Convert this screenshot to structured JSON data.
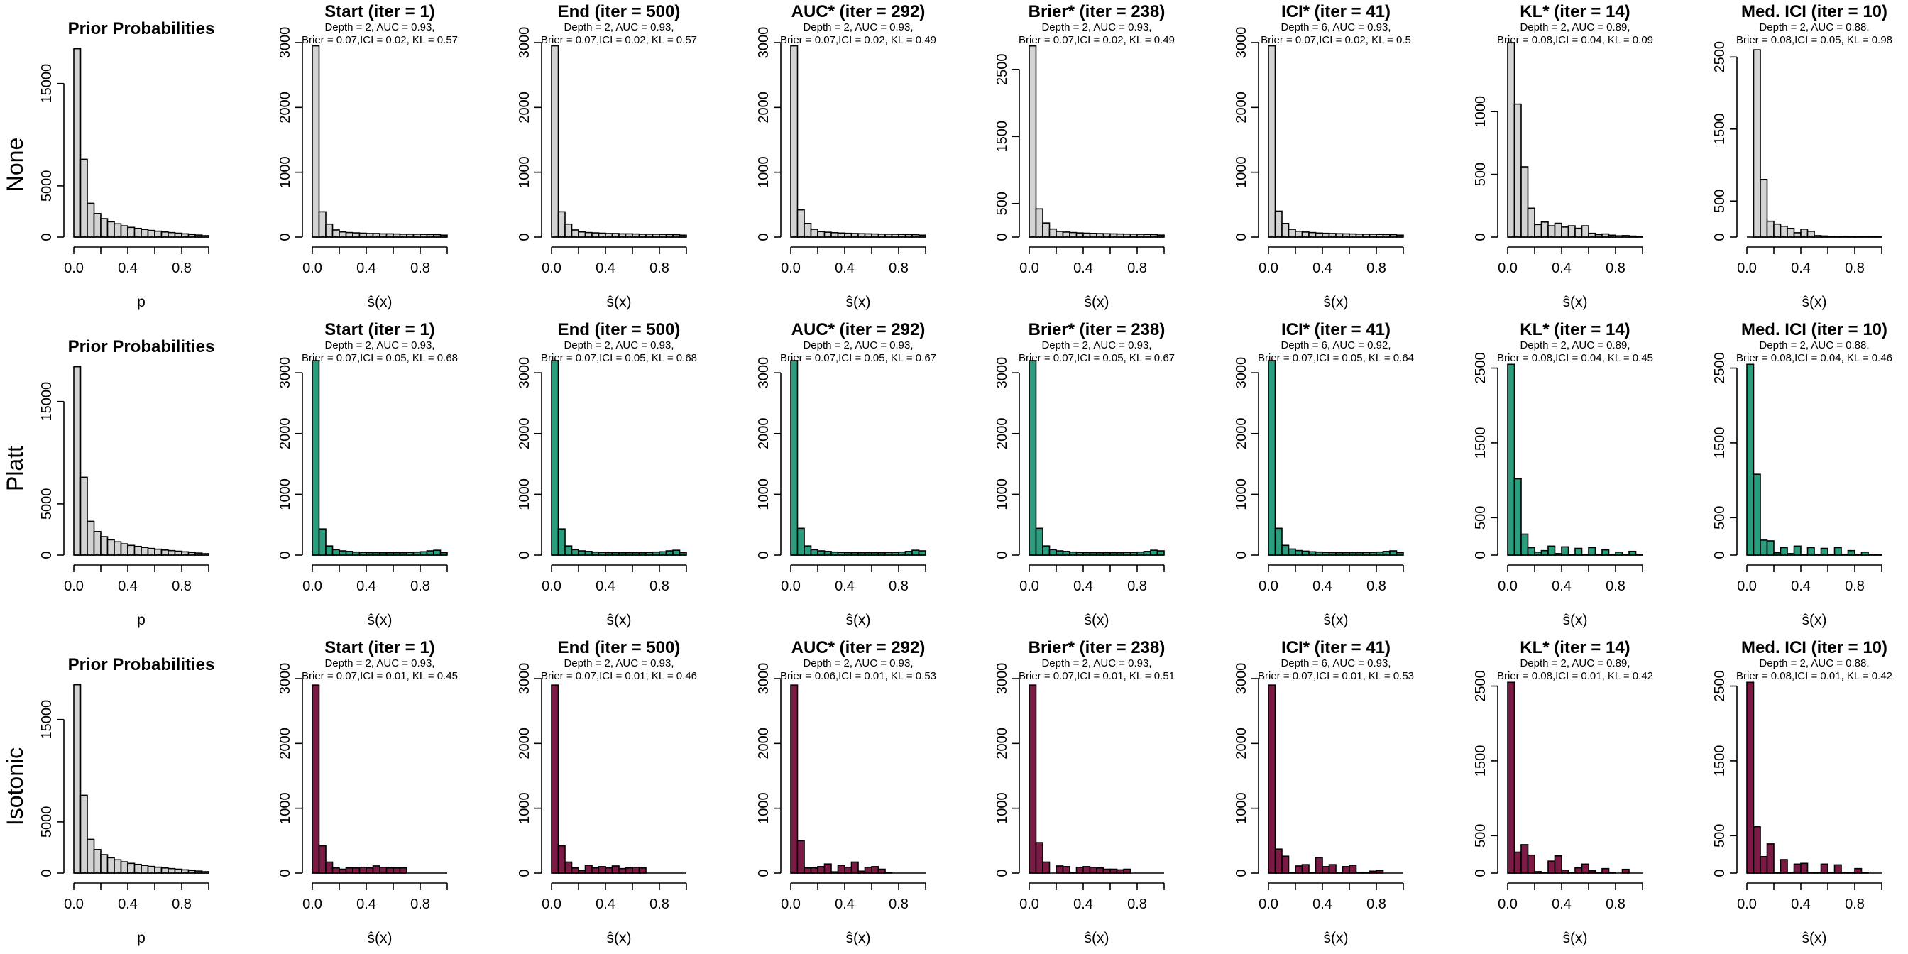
{
  "colors": {
    "prior": "#d3d3d3",
    "none": "#d3d3d3",
    "platt": "#2a9d7f",
    "isotonic": "#7b1a45",
    "outline": "#000000"
  },
  "rows": [
    {
      "key": "none",
      "label": "None"
    },
    {
      "key": "platt",
      "label": "Platt"
    },
    {
      "key": "isotonic",
      "label": "Isotonic"
    }
  ],
  "axis_labels": {
    "prior": "p",
    "score": "ŝ(x)"
  },
  "chart_data": [
    {
      "type": "bar",
      "row": "None",
      "col": 0,
      "title": "Prior Probabilities",
      "subtitle": [
        "",
        ""
      ],
      "xlabel": "p",
      "fill": "prior",
      "xlim": [
        0,
        1
      ],
      "ylim": [
        0,
        19000
      ],
      "xticks": [
        "0.0",
        "0.4",
        "0.8"
      ],
      "yticks": [
        0,
        5000,
        15000
      ],
      "bin_width": 0.05,
      "values": [
        18400,
        7600,
        3300,
        2300,
        1800,
        1500,
        1300,
        1100,
        950,
        850,
        750,
        650,
        580,
        500,
        440,
        380,
        320,
        260,
        200,
        140
      ]
    },
    {
      "type": "bar",
      "row": "None",
      "col": 1,
      "title": "Start (iter = 1)",
      "subtitle": [
        "Depth = 2, AUC = 0.93,",
        "Brier = 0.07,ICI = 0.02, KL = 0.57"
      ],
      "xlabel": "ŝ(x)",
      "fill": "none",
      "xlim": [
        0,
        1
      ],
      "ylim": [
        0,
        3000
      ],
      "xticks": [
        "0.0",
        "0.4",
        "0.8"
      ],
      "yticks": [
        0,
        1000,
        2000,
        3000
      ],
      "bin_width": 0.05,
      "values": [
        2950,
        390,
        200,
        110,
        80,
        70,
        65,
        60,
        55,
        55,
        50,
        50,
        48,
        45,
        45,
        45,
        42,
        40,
        38,
        30
      ]
    },
    {
      "type": "bar",
      "row": "None",
      "col": 2,
      "title": "End (iter = 500)",
      "subtitle": [
        "Depth = 2, AUC = 0.93,",
        "Brier = 0.07,ICI = 0.02, KL = 0.57"
      ],
      "xlabel": "ŝ(x)",
      "fill": "none",
      "xlim": [
        0,
        1
      ],
      "ylim": [
        0,
        3000
      ],
      "xticks": [
        "0.0",
        "0.4",
        "0.8"
      ],
      "yticks": [
        0,
        1000,
        2000,
        3000
      ],
      "bin_width": 0.05,
      "values": [
        2950,
        390,
        200,
        110,
        80,
        70,
        65,
        60,
        55,
        55,
        50,
        50,
        48,
        45,
        45,
        45,
        42,
        40,
        38,
        30
      ]
    },
    {
      "type": "bar",
      "row": "None",
      "col": 3,
      "title": "AUC* (iter = 292)",
      "subtitle": [
        "Depth = 2, AUC = 0.93,",
        "Brier = 0.07,ICI = 0.02, KL = 0.49"
      ],
      "xlabel": "ŝ(x)",
      "fill": "none",
      "xlim": [
        0,
        1
      ],
      "ylim": [
        0,
        3000
      ],
      "xticks": [
        "0.0",
        "0.4",
        "0.8"
      ],
      "yticks": [
        0,
        1000,
        2000,
        3000
      ],
      "bin_width": 0.05,
      "values": [
        2950,
        420,
        210,
        120,
        85,
        75,
        68,
        62,
        58,
        55,
        52,
        50,
        48,
        46,
        45,
        44,
        42,
        40,
        38,
        30
      ]
    },
    {
      "type": "bar",
      "row": "None",
      "col": 4,
      "title": "Brier* (iter = 238)",
      "subtitle": [
        "Depth = 2, AUC = 0.93,",
        "Brier = 0.07,ICI = 0.02, KL = 0.49"
      ],
      "xlabel": "ŝ(x)",
      "fill": "none",
      "xlim": [
        0,
        1
      ],
      "ylim": [
        0,
        2900
      ],
      "xticks": [
        "0.0",
        "0.4",
        "0.8"
      ],
      "yticks": [
        0,
        500,
        1500,
        2500
      ],
      "bin_width": 0.05,
      "values": [
        2850,
        420,
        210,
        120,
        85,
        75,
        68,
        62,
        58,
        55,
        52,
        50,
        48,
        46,
        45,
        44,
        42,
        40,
        38,
        30
      ]
    },
    {
      "type": "bar",
      "row": "None",
      "col": 5,
      "title": "ICI* (iter = 41)",
      "subtitle": [
        "Depth = 6, AUC = 0.93,",
        "Brier = 0.07,ICI = 0.02, KL = 0.5"
      ],
      "xlabel": "ŝ(x)",
      "fill": "none",
      "xlim": [
        0,
        1
      ],
      "ylim": [
        0,
        3000
      ],
      "xticks": [
        "0.0",
        "0.4",
        "0.8"
      ],
      "yticks": [
        0,
        1000,
        2000,
        3000
      ],
      "bin_width": 0.05,
      "values": [
        2950,
        400,
        210,
        120,
        90,
        78,
        70,
        62,
        58,
        55,
        52,
        50,
        48,
        46,
        45,
        44,
        42,
        40,
        38,
        30
      ]
    },
    {
      "type": "bar",
      "row": "None",
      "col": 6,
      "title": "KL* (iter = 14)",
      "subtitle": [
        "Depth = 2, AUC = 0.89,",
        "Brier = 0.08,ICI = 0.04, KL = 0.09"
      ],
      "xlabel": "ŝ(x)",
      "fill": "none",
      "xlim": [
        0,
        1
      ],
      "ylim": [
        0,
        1550
      ],
      "xticks": [
        "0.0",
        "0.4",
        "0.8"
      ],
      "yticks": [
        0,
        500,
        1000
      ],
      "bin_width": 0.05,
      "values": [
        1550,
        1060,
        560,
        230,
        100,
        120,
        90,
        110,
        80,
        90,
        70,
        90,
        30,
        20,
        25,
        15,
        10,
        12,
        8,
        5
      ]
    },
    {
      "type": "bar",
      "row": "None",
      "col": 7,
      "title": "Med. ICI (iter = 10)",
      "subtitle": [
        "Depth = 2, AUC = 0.88,",
        "Brier = 0.08,ICI = 0.05, KL = 0.98"
      ],
      "xlabel": "ŝ(x)",
      "fill": "none",
      "xlim": [
        0,
        1
      ],
      "ylim": [
        0,
        2700
      ],
      "xticks": [
        "0.0",
        "0.4",
        "0.8"
      ],
      "yticks": [
        0,
        500,
        1500,
        2500
      ],
      "bin_width": 0.05,
      "values": [
        0,
        2600,
        800,
        220,
        180,
        150,
        120,
        60,
        110,
        80,
        20,
        15,
        10,
        8,
        6,
        5,
        4,
        3,
        2,
        2
      ]
    },
    {
      "type": "bar",
      "row": "Platt",
      "col": 0,
      "title": "Prior Probabilities",
      "subtitle": [
        "",
        ""
      ],
      "xlabel": "p",
      "fill": "prior",
      "xlim": [
        0,
        1
      ],
      "ylim": [
        0,
        19000
      ],
      "xticks": [
        "0.0",
        "0.4",
        "0.8"
      ],
      "yticks": [
        0,
        5000,
        15000
      ],
      "bin_width": 0.05,
      "values": [
        18400,
        7600,
        3300,
        2300,
        1800,
        1500,
        1300,
        1100,
        950,
        850,
        750,
        650,
        580,
        500,
        440,
        380,
        320,
        260,
        200,
        140
      ]
    },
    {
      "type": "bar",
      "row": "Platt",
      "col": 1,
      "title": "Start (iter = 1)",
      "subtitle": [
        "Depth = 2, AUC = 0.93,",
        "Brier = 0.07,ICI = 0.05, KL = 0.68"
      ],
      "xlabel": "ŝ(x)",
      "fill": "platt",
      "xlim": [
        0,
        1
      ],
      "ylim": [
        0,
        3200
      ],
      "xticks": [
        "0.0",
        "0.4",
        "0.8"
      ],
      "yticks": [
        0,
        1000,
        2000,
        3000
      ],
      "bin_width": 0.05,
      "values": [
        3200,
        430,
        150,
        90,
        70,
        60,
        50,
        45,
        40,
        40,
        38,
        38,
        38,
        38,
        45,
        50,
        55,
        70,
        80,
        40
      ]
    },
    {
      "type": "bar",
      "row": "Platt",
      "col": 2,
      "title": "End (iter = 500)",
      "subtitle": [
        "Depth = 2, AUC = 0.93,",
        "Brier = 0.07,ICI = 0.05, KL = 0.68"
      ],
      "xlabel": "ŝ(x)",
      "fill": "platt",
      "xlim": [
        0,
        1
      ],
      "ylim": [
        0,
        3200
      ],
      "xticks": [
        "0.0",
        "0.4",
        "0.8"
      ],
      "yticks": [
        0,
        1000,
        2000,
        3000
      ],
      "bin_width": 0.05,
      "values": [
        3200,
        430,
        150,
        90,
        70,
        60,
        50,
        45,
        40,
        40,
        38,
        38,
        38,
        38,
        45,
        50,
        55,
        70,
        80,
        40
      ]
    },
    {
      "type": "bar",
      "row": "Platt",
      "col": 3,
      "title": "AUC* (iter = 292)",
      "subtitle": [
        "Depth = 2, AUC = 0.93,",
        "Brier = 0.07,ICI = 0.05, KL = 0.67"
      ],
      "xlabel": "ŝ(x)",
      "fill": "platt",
      "xlim": [
        0,
        1
      ],
      "ylim": [
        0,
        3200
      ],
      "xticks": [
        "0.0",
        "0.4",
        "0.8"
      ],
      "yticks": [
        0,
        1000,
        2000,
        3000
      ],
      "bin_width": 0.05,
      "values": [
        3200,
        440,
        150,
        90,
        70,
        60,
        50,
        45,
        40,
        40,
        38,
        38,
        38,
        38,
        45,
        45,
        50,
        60,
        80,
        70
      ]
    },
    {
      "type": "bar",
      "row": "Platt",
      "col": 4,
      "title": "Brier* (iter = 238)",
      "subtitle": [
        "Depth = 2, AUC = 0.93,",
        "Brier = 0.07,ICI = 0.05, KL = 0.67"
      ],
      "xlabel": "ŝ(x)",
      "fill": "platt",
      "xlim": [
        0,
        1
      ],
      "ylim": [
        0,
        3200
      ],
      "xticks": [
        "0.0",
        "0.4",
        "0.8"
      ],
      "yticks": [
        0,
        1000,
        2000,
        3000
      ],
      "bin_width": 0.05,
      "values": [
        3200,
        440,
        150,
        90,
        70,
        60,
        50,
        45,
        40,
        40,
        38,
        38,
        38,
        38,
        45,
        45,
        50,
        60,
        80,
        70
      ]
    },
    {
      "type": "bar",
      "row": "Platt",
      "col": 5,
      "title": "ICI* (iter = 41)",
      "subtitle": [
        "Depth = 6, AUC = 0.92,",
        "Brier = 0.07,ICI = 0.05, KL = 0.64"
      ],
      "xlabel": "ŝ(x)",
      "fill": "platt",
      "xlim": [
        0,
        1
      ],
      "ylim": [
        0,
        3200
      ],
      "xticks": [
        "0.0",
        "0.4",
        "0.8"
      ],
      "yticks": [
        0,
        1000,
        2000,
        3000
      ],
      "bin_width": 0.05,
      "values": [
        3200,
        440,
        160,
        100,
        75,
        65,
        55,
        50,
        45,
        42,
        40,
        40,
        40,
        40,
        45,
        45,
        50,
        60,
        70,
        40
      ]
    },
    {
      "type": "bar",
      "row": "Platt",
      "col": 6,
      "title": "KL* (iter = 14)",
      "subtitle": [
        "Depth = 2, AUC = 0.89,",
        "Brier = 0.08,ICI = 0.04, KL = 0.45"
      ],
      "xlabel": "ŝ(x)",
      "fill": "platt",
      "xlim": [
        0,
        1
      ],
      "ylim": [
        0,
        2600
      ],
      "xticks": [
        "0.0",
        "0.4",
        "0.8"
      ],
      "yticks": [
        0,
        500,
        1500,
        2500
      ],
      "bin_width": 0.05,
      "values": [
        2550,
        1020,
        280,
        100,
        40,
        60,
        120,
        20,
        110,
        10,
        90,
        10,
        100,
        10,
        70,
        10,
        40,
        10,
        50,
        10
      ]
    },
    {
      "type": "bar",
      "row": "Platt",
      "col": 7,
      "title": "Med. ICI (iter = 10)",
      "subtitle": [
        "Depth = 2, AUC = 0.88,",
        "Brier = 0.08,ICI = 0.04, KL = 0.46"
      ],
      "xlabel": "ŝ(x)",
      "fill": "platt",
      "xlim": [
        0,
        1
      ],
      "ylim": [
        0,
        2600
      ],
      "xticks": [
        "0.0",
        "0.4",
        "0.8"
      ],
      "yticks": [
        0,
        500,
        1500,
        2500
      ],
      "bin_width": 0.05,
      "values": [
        2550,
        1080,
        200,
        190,
        30,
        100,
        20,
        120,
        10,
        100,
        10,
        90,
        10,
        100,
        10,
        60,
        10,
        40,
        10,
        10
      ]
    },
    {
      "type": "bar",
      "row": "Isotonic",
      "col": 0,
      "title": "Prior Probabilities",
      "subtitle": [
        "",
        ""
      ],
      "xlabel": "p",
      "fill": "prior",
      "xlim": [
        0,
        1
      ],
      "ylim": [
        0,
        19000
      ],
      "xticks": [
        "0.0",
        "0.4",
        "0.8"
      ],
      "yticks": [
        0,
        5000,
        15000
      ],
      "bin_width": 0.05,
      "values": [
        18400,
        7600,
        3300,
        2300,
        1800,
        1500,
        1300,
        1100,
        950,
        850,
        750,
        650,
        580,
        500,
        440,
        380,
        320,
        260,
        200,
        140
      ]
    },
    {
      "type": "bar",
      "row": "Isotonic",
      "col": 1,
      "title": "Start (iter = 1)",
      "subtitle": [
        "Depth = 2, AUC = 0.93,",
        "Brier = 0.07,ICI = 0.01, KL = 0.45"
      ],
      "xlabel": "ŝ(x)",
      "fill": "isotonic",
      "xlim": [
        0,
        1
      ],
      "ylim": [
        0,
        3000
      ],
      "xticks": [
        "0.0",
        "0.4",
        "0.8"
      ],
      "yticks": [
        0,
        1000,
        2000,
        3000
      ],
      "bin_width": 0.05,
      "values": [
        2900,
        420,
        170,
        80,
        60,
        80,
        80,
        90,
        80,
        110,
        90,
        80,
        80,
        80,
        0,
        0,
        0,
        0,
        0,
        0
      ]
    },
    {
      "type": "bar",
      "row": "Isotonic",
      "col": 2,
      "title": "End (iter = 500)",
      "subtitle": [
        "Depth = 2, AUC = 0.93,",
        "Brier = 0.07,ICI = 0.01, KL = 0.46"
      ],
      "xlabel": "ŝ(x)",
      "fill": "isotonic",
      "xlim": [
        0,
        1
      ],
      "ylim": [
        0,
        3000
      ],
      "xticks": [
        "0.0",
        "0.4",
        "0.8"
      ],
      "yticks": [
        0,
        1000,
        2000,
        3000
      ],
      "bin_width": 0.05,
      "values": [
        2900,
        420,
        170,
        80,
        40,
        120,
        80,
        100,
        80,
        110,
        70,
        80,
        90,
        80,
        0,
        0,
        0,
        0,
        0,
        0
      ]
    },
    {
      "type": "bar",
      "row": "Isotonic",
      "col": 3,
      "title": "AUC* (iter = 292)",
      "subtitle": [
        "Depth = 2, AUC = 0.93,",
        "Brier = 0.06,ICI = 0.01, KL = 0.53"
      ],
      "xlabel": "ŝ(x)",
      "fill": "isotonic",
      "xlim": [
        0,
        1
      ],
      "ylim": [
        0,
        3000
      ],
      "xticks": [
        "0.0",
        "0.4",
        "0.8"
      ],
      "yticks": [
        0,
        1000,
        2000,
        3000
      ],
      "bin_width": 0.05,
      "values": [
        2900,
        500,
        80,
        80,
        100,
        140,
        20,
        120,
        90,
        170,
        30,
        90,
        100,
        60,
        10,
        0,
        0,
        0,
        0,
        0
      ]
    },
    {
      "type": "bar",
      "row": "Isotonic",
      "col": 4,
      "title": "Brier* (iter = 238)",
      "subtitle": [
        "Depth = 2, AUC = 0.93,",
        "Brier = 0.07,ICI = 0.01, KL = 0.51"
      ],
      "xlabel": "ŝ(x)",
      "fill": "isotonic",
      "xlim": [
        0,
        1
      ],
      "ylim": [
        0,
        3000
      ],
      "xticks": [
        "0.0",
        "0.4",
        "0.8"
      ],
      "yticks": [
        0,
        1000,
        2000,
        3000
      ],
      "bin_width": 0.05,
      "values": [
        2900,
        470,
        170,
        0,
        110,
        100,
        10,
        90,
        100,
        90,
        80,
        60,
        60,
        50,
        60,
        0,
        0,
        0,
        0,
        0
      ]
    },
    {
      "type": "bar",
      "row": "Isotonic",
      "col": 5,
      "title": "ICI* (iter = 41)",
      "subtitle": [
        "Depth = 6, AUC = 0.93,",
        "Brier = 0.07,ICI = 0.01, KL = 0.53"
      ],
      "xlabel": "ŝ(x)",
      "fill": "isotonic",
      "xlim": [
        0,
        1
      ],
      "ylim": [
        0,
        3000
      ],
      "xticks": [
        "0.0",
        "0.4",
        "0.8"
      ],
      "yticks": [
        0,
        1000,
        2000,
        3000
      ],
      "bin_width": 0.05,
      "values": [
        2900,
        370,
        260,
        10,
        110,
        130,
        10,
        240,
        100,
        130,
        10,
        100,
        120,
        10,
        10,
        30,
        40,
        0,
        0,
        0
      ]
    },
    {
      "type": "bar",
      "row": "Isotonic",
      "col": 6,
      "title": "KL* (iter = 14)",
      "subtitle": [
        "Depth = 2, AUC = 0.89,",
        "Brier = 0.08,ICI = 0.01, KL = 0.42"
      ],
      "xlabel": "ŝ(x)",
      "fill": "isotonic",
      "xlim": [
        0,
        1
      ],
      "ylim": [
        0,
        2600
      ],
      "xticks": [
        "0.0",
        "0.4",
        "0.8"
      ],
      "yticks": [
        0,
        500,
        1500,
        2500
      ],
      "bin_width": 0.05,
      "values": [
        2550,
        280,
        380,
        240,
        20,
        10,
        160,
        230,
        40,
        10,
        70,
        120,
        30,
        10,
        60,
        10,
        0,
        50,
        0,
        0
      ]
    },
    {
      "type": "bar",
      "row": "Isotonic",
      "col": 7,
      "title": "Med. ICI (iter = 10)",
      "subtitle": [
        "Depth = 2, AUC = 0.88,",
        "Brier = 0.08,ICI = 0.01, KL = 0.42"
      ],
      "xlabel": "ŝ(x)",
      "fill": "isotonic",
      "xlim": [
        0,
        1
      ],
      "ylim": [
        0,
        2600
      ],
      "xticks": [
        "0.0",
        "0.4",
        "0.8"
      ],
      "yticks": [
        0,
        500,
        1500,
        2500
      ],
      "bin_width": 0.05,
      "values": [
        2550,
        620,
        220,
        390,
        10,
        180,
        10,
        120,
        130,
        10,
        10,
        120,
        10,
        110,
        10,
        10,
        60,
        10,
        0,
        0
      ]
    }
  ]
}
